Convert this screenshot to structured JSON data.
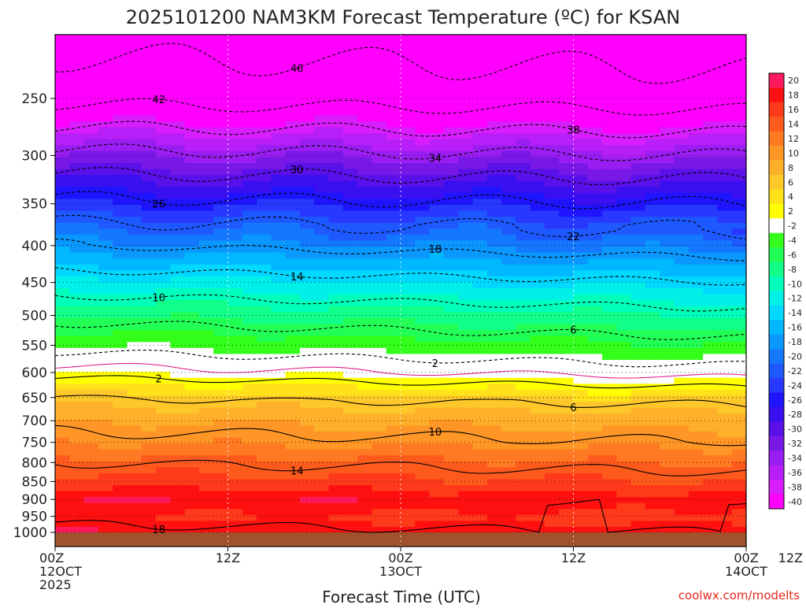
{
  "chart_data": {
    "type": "heatmap",
    "title": "2025101200 NAM3KM Forecast Temperature (ºC) for KSAN",
    "xlabel": "Forecast Time (UTC)",
    "ylabel": "",
    "credit": "coolwx.com/modelts",
    "x_range_hours": [
      0,
      48
    ],
    "x_ticks": [
      {
        "hour": 0,
        "lines": [
          "00Z",
          "12OCT",
          "2025"
        ]
      },
      {
        "hour": 12,
        "lines": [
          "12Z"
        ]
      },
      {
        "hour": 24,
        "lines": [
          "00Z",
          "13OCT"
        ]
      },
      {
        "hour": 36,
        "lines": [
          "12Z"
        ]
      },
      {
        "hour": 48,
        "lines": [
          "00Z",
          "14OCT"
        ]
      },
      {
        "hour": 60,
        "lines": [
          "12Z"
        ]
      }
    ],
    "y_axis": {
      "scale": "log-pressure",
      "range_hPa": [
        1000,
        200
      ],
      "ticks": [
        "250",
        "300",
        "350",
        "400",
        "450",
        "500",
        "550",
        "600",
        "650",
        "700",
        "750",
        "800",
        "850",
        "900",
        "950",
        "1000"
      ]
    },
    "colorbar": {
      "labels": [
        "20",
        "18",
        "16",
        "14",
        "12",
        "10",
        "8",
        "6",
        "4",
        "2",
        "-2",
        "-4",
        "-6",
        "-8",
        "-10",
        "-12",
        "-14",
        "-16",
        "-18",
        "-20",
        "-22",
        "-24",
        "-26",
        "-28",
        "-30",
        "-32",
        "-34",
        "-36",
        "-38",
        "-40"
      ],
      "colors": [
        "#ff1a5e",
        "#ff1010",
        "#ff3a1a",
        "#ff5a1e",
        "#ff7a22",
        "#ff9626",
        "#ffb02a",
        "#ffc82a",
        "#ffe21a",
        "#ffff00",
        "#ffffff",
        "#33ff1a",
        "#22ff55",
        "#11ff88",
        "#00ffbb",
        "#00f0e8",
        "#00d8ff",
        "#00b8ff",
        "#0a98ff",
        "#1478ff",
        "#1e58ff",
        "#2838ff",
        "#1e14ff",
        "#3a10f0",
        "#5a10e8",
        "#7818e6",
        "#9a1ef2",
        "#b81ef8",
        "#d81efc",
        "#ff00ff"
      ]
    },
    "isotherms": [
      {
        "value": 18,
        "label": "18",
        "style": "solid"
      },
      {
        "value": 14,
        "label": "14",
        "style": "solid"
      },
      {
        "value": 10,
        "label": "10",
        "style": "solid"
      },
      {
        "value": 6,
        "label": "6",
        "style": "solid"
      },
      {
        "value": 2,
        "label": "2",
        "style": "solid"
      },
      {
        "value": 0,
        "label": "",
        "style": "magenta"
      },
      {
        "value": -2,
        "label": "2",
        "style": "dashed"
      },
      {
        "value": -6,
        "label": "6",
        "style": "dashed"
      },
      {
        "value": -10,
        "label": "10",
        "style": "dashed"
      },
      {
        "value": -14,
        "label": "14",
        "style": "dashed"
      },
      {
        "value": -18,
        "label": "18",
        "style": "dashed"
      },
      {
        "value": -22,
        "label": "22",
        "style": "dashed"
      },
      {
        "value": -26,
        "label": "26",
        "style": "dashed"
      },
      {
        "value": -30,
        "label": "30",
        "style": "dashed"
      },
      {
        "value": -34,
        "label": "34",
        "style": "dashed"
      },
      {
        "value": -38,
        "label": "38",
        "style": "dashed"
      },
      {
        "value": -42,
        "label": "42",
        "style": "dashed"
      },
      {
        "value": -46,
        "label": "46",
        "style": "dashed"
      }
    ],
    "temperature_profile_hour0": [
      {
        "hPa": 1000,
        "t": 19
      },
      {
        "hPa": 950,
        "t": 17
      },
      {
        "hPa": 900,
        "t": 19
      },
      {
        "hPa": 850,
        "t": 16
      },
      {
        "hPa": 800,
        "t": 14
      },
      {
        "hPa": 750,
        "t": 11
      },
      {
        "hPa": 700,
        "t": 9
      },
      {
        "hPa": 650,
        "t": 6
      },
      {
        "hPa": 600,
        "t": 1
      },
      {
        "hPa": 550,
        "t": -3
      },
      {
        "hPa": 500,
        "t": -7
      },
      {
        "hPa": 450,
        "t": -12
      },
      {
        "hPa": 400,
        "t": -18
      },
      {
        "hPa": 350,
        "t": -25
      },
      {
        "hPa": 300,
        "t": -33
      },
      {
        "hPa": 250,
        "t": -43
      },
      {
        "hPa": 200,
        "t": -48
      }
    ]
  }
}
